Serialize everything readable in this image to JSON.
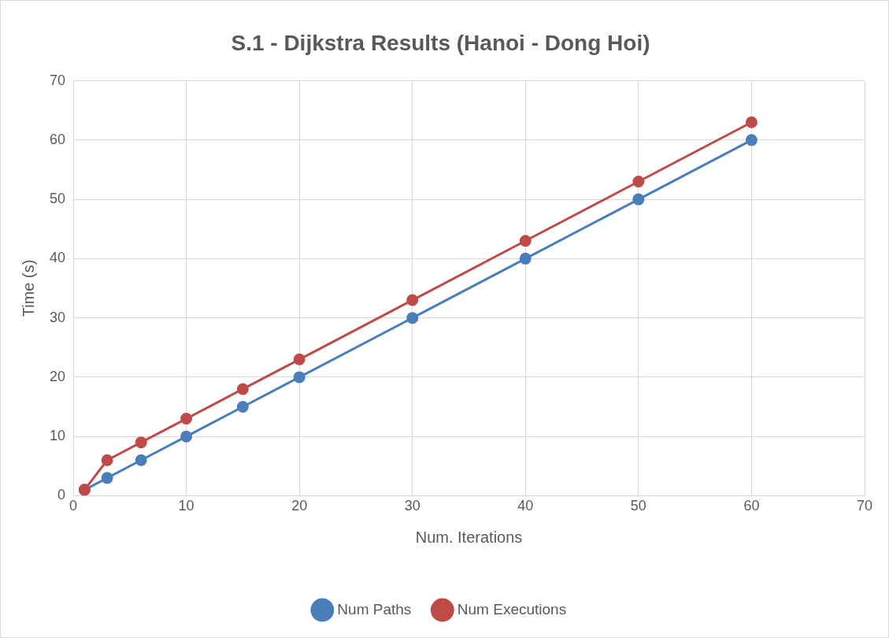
{
  "chart_data": {
    "type": "line",
    "title": "S.1 - Dijkstra Results (Hanoi - Dong Hoi)",
    "xlabel": "Num. Iterations",
    "ylabel": "Time (s)",
    "x": [
      1,
      3,
      6,
      10,
      15,
      20,
      30,
      40,
      50,
      60
    ],
    "series": [
      {
        "name": "Num Paths",
        "color": "#4a7ebb",
        "values": [
          1,
          3,
          6,
          10,
          15,
          20,
          30,
          40,
          50,
          60
        ]
      },
      {
        "name": "Num Executions",
        "color": "#be4b48",
        "values": [
          1,
          6,
          9,
          13,
          18,
          23,
          33,
          43,
          53,
          63
        ]
      }
    ],
    "xlim": [
      0,
      70
    ],
    "xticks": [
      0,
      10,
      20,
      30,
      40,
      50,
      60,
      70
    ],
    "ylim": [
      0,
      70
    ],
    "yticks": [
      0,
      10,
      20,
      30,
      40,
      50,
      60,
      70
    ],
    "grid": true,
    "legend": "bottom",
    "marker": "circle",
    "line_style": "solid"
  }
}
